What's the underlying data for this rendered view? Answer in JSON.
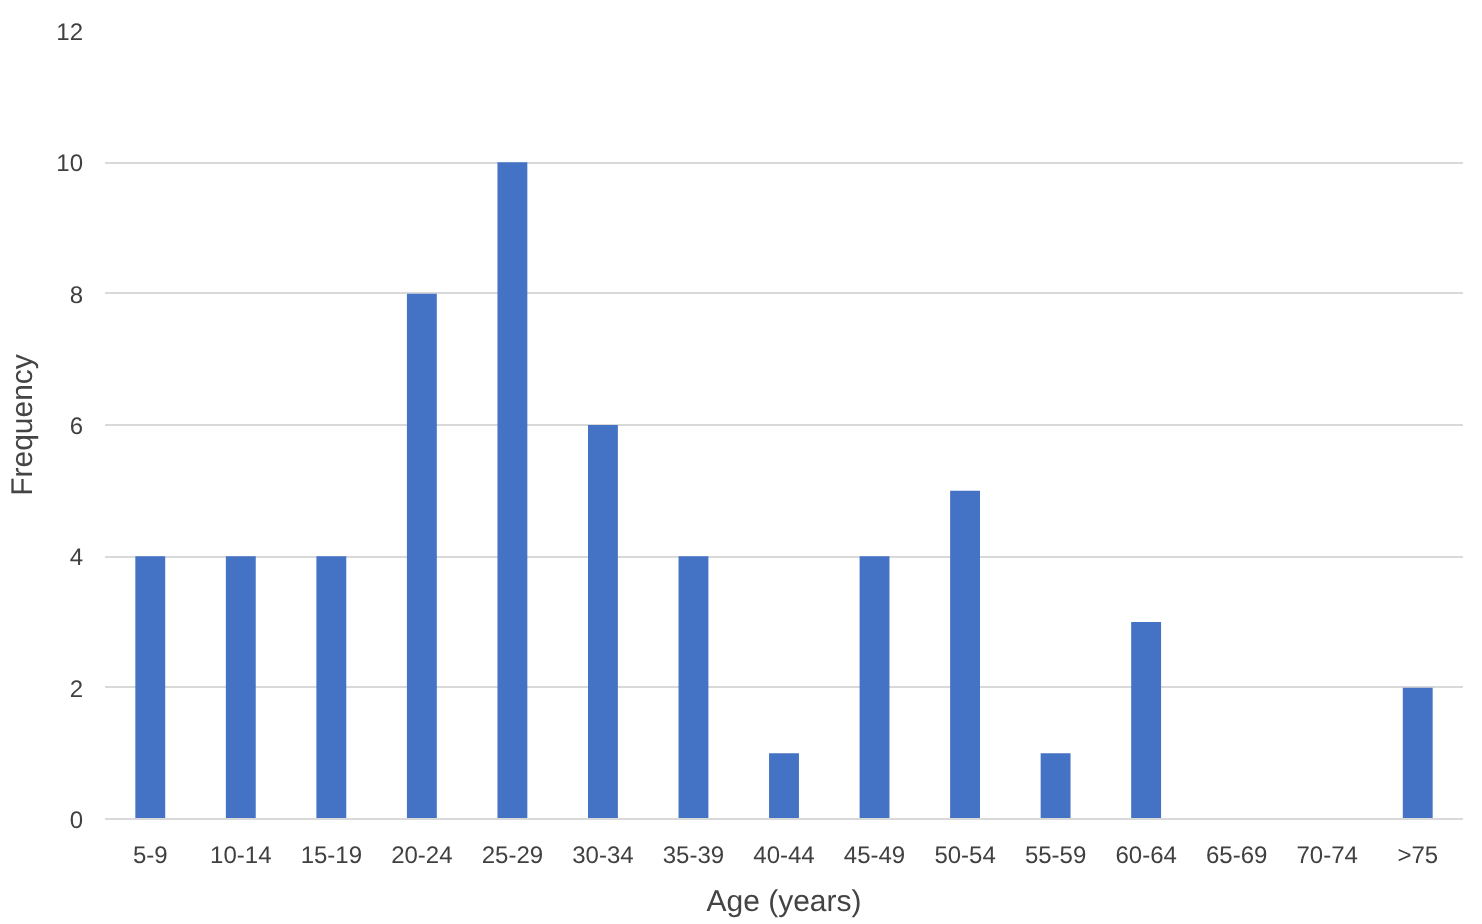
{
  "chart_data": {
    "type": "bar",
    "xlabel": "Age (years)",
    "ylabel": "Frequency",
    "categories": [
      "5-9",
      "10-14",
      "15-19",
      "20-24",
      "25-29",
      "30-34",
      "35-39",
      "40-44",
      "45-49",
      "50-54",
      "55-59",
      "60-64",
      "65-69",
      "70-74",
      ">75"
    ],
    "values": [
      4,
      4,
      4,
      8,
      10,
      6,
      4,
      1,
      4,
      5,
      1,
      3,
      0,
      0,
      2
    ],
    "color": "#4472c4",
    "ylim": [
      0,
      12
    ],
    "yticks": [
      0,
      2,
      4,
      6,
      8,
      10,
      12
    ],
    "grid": "y"
  }
}
